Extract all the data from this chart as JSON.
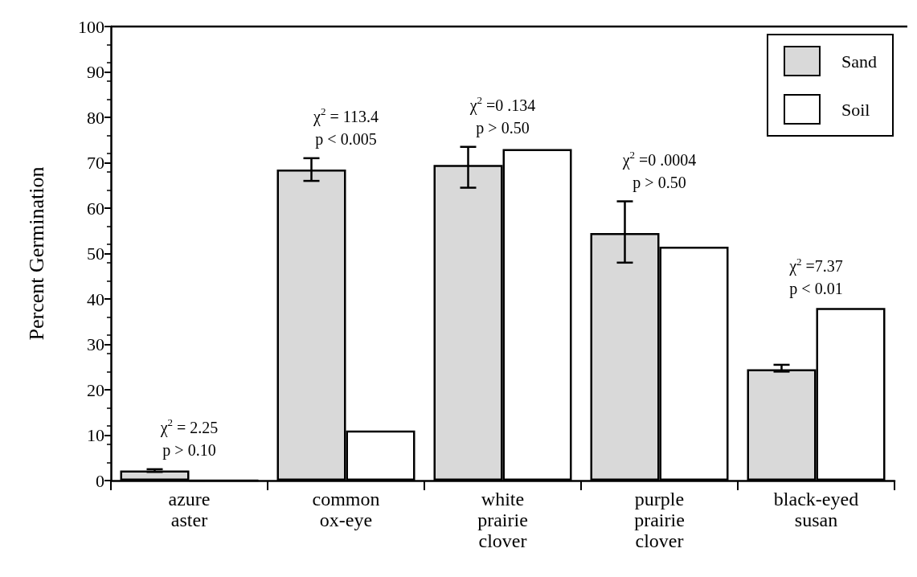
{
  "chart_data": {
    "type": "bar",
    "ylabel": "Percent Germination",
    "categories": [
      "azure\naster",
      "common\nox-eye",
      "white\nprairie\nclover",
      "purple\nprairie\nclover",
      "black-eyed\nsusan"
    ],
    "series": [
      {
        "name": "Sand",
        "color": "#d9d9d9",
        "values": [
          2.2,
          68.5,
          69.5,
          54.5,
          24.5
        ],
        "errors": [
          [
            1.9,
            2.5
          ],
          [
            66,
            71
          ],
          [
            64.5,
            73.5
          ],
          [
            48,
            61.5
          ],
          [
            24,
            25.5
          ]
        ]
      },
      {
        "name": "Soil",
        "color": "#ffffff",
        "values": [
          0,
          11,
          73,
          51.5,
          38
        ]
      }
    ],
    "ylim": [
      0,
      100
    ],
    "yticks": [
      0,
      10,
      20,
      30,
      40,
      50,
      60,
      70,
      80,
      90,
      100
    ],
    "legend": "top right",
    "grid": false,
    "annotations": [
      "χ$^{2}$ = 2.25\np > 0.10",
      "χ$^{2}$ = 113.4\np < 0.005",
      "χ$^{2}$ =0 .134\np > 0.50",
      "χ$^{2}$ =0 .0004\np > 0.50",
      "χ$^{2}$ =7.37\np < 0.01"
    ]
  }
}
